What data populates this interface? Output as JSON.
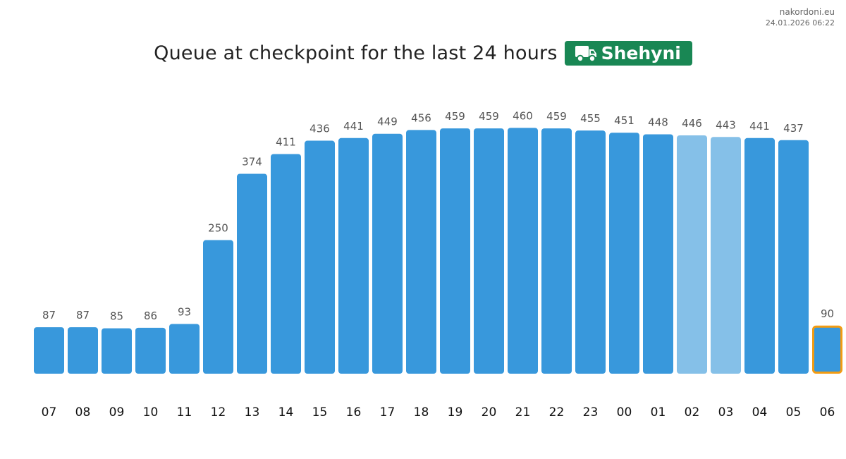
{
  "site": {
    "domain": "nakordoni.eu",
    "timestamp": "24.01.2026 06:22"
  },
  "header": {
    "title": "Queue at checkpoint for the last 24 hours",
    "checkpoint_name": "Shehyni",
    "checkpoint_icon": "truck-icon",
    "badge_color": "#198754"
  },
  "chart_data": {
    "type": "bar",
    "categories": [
      "07",
      "08",
      "09",
      "10",
      "11",
      "12",
      "13",
      "14",
      "15",
      "16",
      "17",
      "18",
      "19",
      "20",
      "21",
      "22",
      "23",
      "00",
      "01",
      "02",
      "03",
      "04",
      "05",
      "06"
    ],
    "values": [
      87,
      87,
      85,
      86,
      93,
      250,
      374,
      411,
      436,
      441,
      449,
      456,
      459,
      459,
      460,
      459,
      455,
      451,
      448,
      446,
      443,
      441,
      437,
      90
    ],
    "title": "Queue at checkpoint for the last 24 hours",
    "xlabel": "",
    "ylabel": "",
    "ylim": [
      0,
      475
    ],
    "grid": false,
    "legend": "none",
    "colors": {
      "default": "#3898dc",
      "light": "#85c0e8",
      "current_border": "#f39c12"
    },
    "light_categories": [
      "02",
      "03"
    ],
    "current_category": "06"
  }
}
